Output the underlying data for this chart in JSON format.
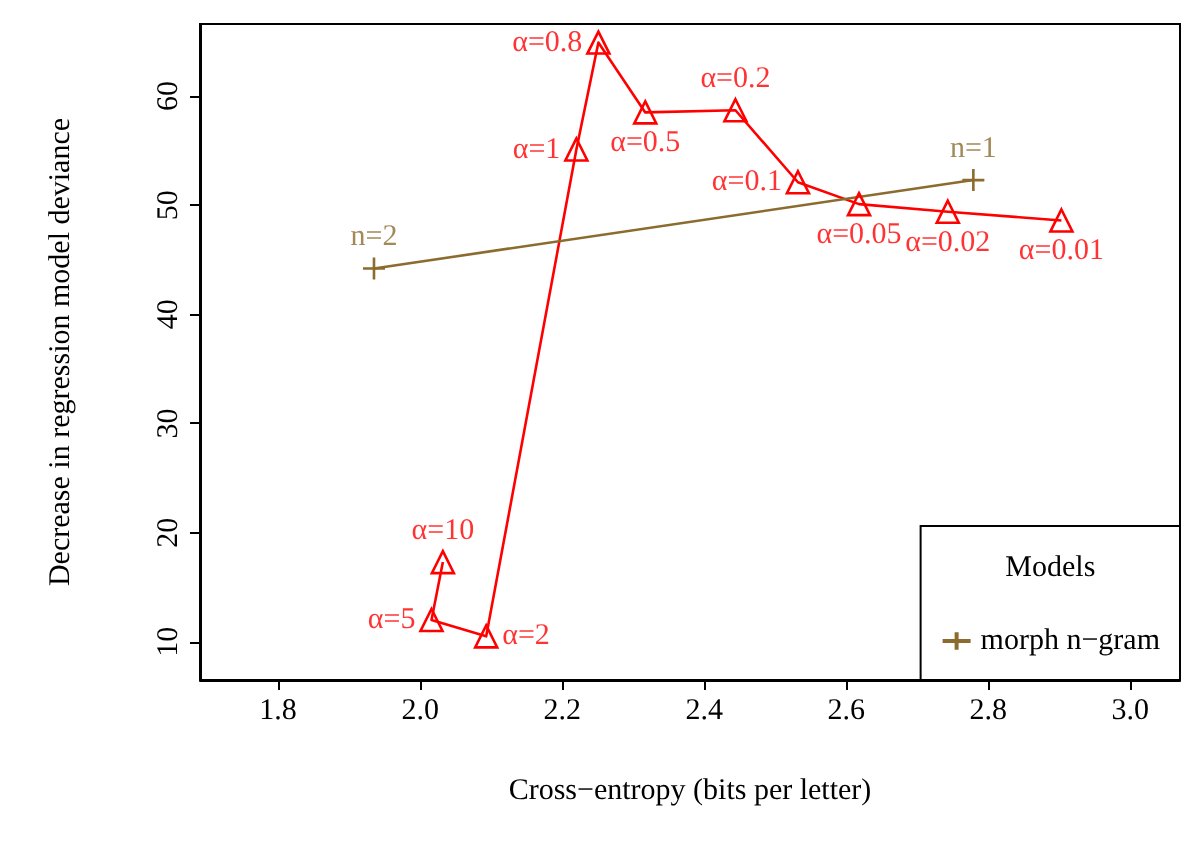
{
  "chart_data": {
    "type": "line",
    "xlabel": "Cross−entropy (bits per letter)",
    "ylabel": "Decrease in regression model deviance",
    "legend_title": "Models",
    "legend": "bottom right",
    "grid": false,
    "xlim": [
      1.69,
      3.07
    ],
    "xticks": [
      1.8,
      {
        "value": 2,
        "label": "2.0"
      },
      2.2,
      2.4,
      2.6,
      2.8,
      {
        "value": 3,
        "label": "3.0"
      }
    ],
    "ylim": [
      6.5,
      66.6
    ],
    "yticks": [
      10,
      20,
      30,
      40,
      50,
      60
    ],
    "series": [
      {
        "color": "#ff0000",
        "marker": "triangle",
        "x": [
          2.032,
          2.016,
          2.093,
          2.22,
          2.251,
          2.317,
          2.444,
          2.532,
          2.618,
          2.743,
          2.903
        ],
        "values": [
          17.3,
          12.0,
          10.5,
          55.1,
          64.9,
          58.5,
          58.7,
          52.1,
          50.1,
          49.4,
          48.6
        ]
      },
      {
        "name": "morph n−gram",
        "color": "#8b6b2e",
        "marker": "cross",
        "x": [
          1.935,
          2.779
        ],
        "values": [
          44.2,
          52.3
        ]
      }
    ],
    "annotations": [
      {
        "text": "α=10",
        "x": 2.032,
        "y": 17.3
      },
      {
        "text": "α=5",
        "x": 2.016,
        "y": 12.0
      },
      {
        "text": "α=2",
        "x": 2.093,
        "y": 10.5
      },
      {
        "text": "α=1",
        "x": 2.22,
        "y": 55.1
      },
      {
        "text": "α=0.8",
        "x": 2.251,
        "y": 64.9
      },
      {
        "text": "α=0.5",
        "x": 2.317,
        "y": 58.5
      },
      {
        "text": "α=0.2",
        "x": 2.444,
        "y": 58.7
      },
      {
        "text": "α=0.1",
        "x": 2.532,
        "y": 52.1
      },
      {
        "text": "α=0.05",
        "x": 2.618,
        "y": 50.1
      },
      {
        "text": "α=0.02",
        "x": 2.743,
        "y": 49.4
      },
      {
        "text": "α=0.01",
        "x": 2.903,
        "y": 48.6
      },
      {
        "text": "n=2",
        "x": 1.935,
        "y": 44.2
      },
      {
        "text": "n=1",
        "x": 2.779,
        "y": 52.3
      }
    ]
  }
}
